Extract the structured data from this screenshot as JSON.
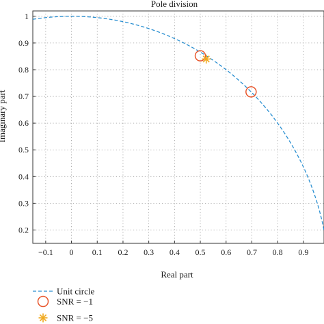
{
  "chart_data": {
    "type": "scatter",
    "title": "Pole division",
    "xlabel": "Real part",
    "ylabel": "Imaginary part",
    "xlim": [
      -0.15,
      0.98
    ],
    "ylim": [
      0.15,
      1.02
    ],
    "xticks": [
      -0.1,
      0,
      0.1,
      0.2,
      0.3,
      0.4,
      0.5,
      0.6,
      0.7,
      0.8,
      0.9
    ],
    "xtick_labels": [
      "−0.1",
      "0",
      "0.1",
      "0.2",
      "0.3",
      "0.4",
      "0.5",
      "0.6",
      "0.7",
      "0.8",
      "0.9"
    ],
    "yticks": [
      0.2,
      0.3,
      0.4,
      0.5,
      0.6,
      0.7,
      0.8,
      0.9,
      1
    ],
    "ytick_labels": [
      "0.2",
      "0.3",
      "0.4",
      "0.5",
      "0.6",
      "0.7",
      "0.8",
      "0.9",
      "1"
    ],
    "grid": true,
    "legend_position": "below",
    "series": [
      {
        "name": "Unit circle",
        "kind": "dashed-line",
        "color": "#2a8fd1",
        "equation": "x^2 + y^2 = 1"
      },
      {
        "name": "SNR = −1",
        "kind": "circle-marker",
        "color": "#e8562c",
        "points": [
          {
            "x": 0.5,
            "y": 0.852
          },
          {
            "x": 0.697,
            "y": 0.717
          }
        ]
      },
      {
        "name": "SNR = −5",
        "kind": "star-marker",
        "color": "#f0a91e",
        "points": [
          {
            "x": 0.523,
            "y": 0.84
          }
        ]
      }
    ]
  }
}
